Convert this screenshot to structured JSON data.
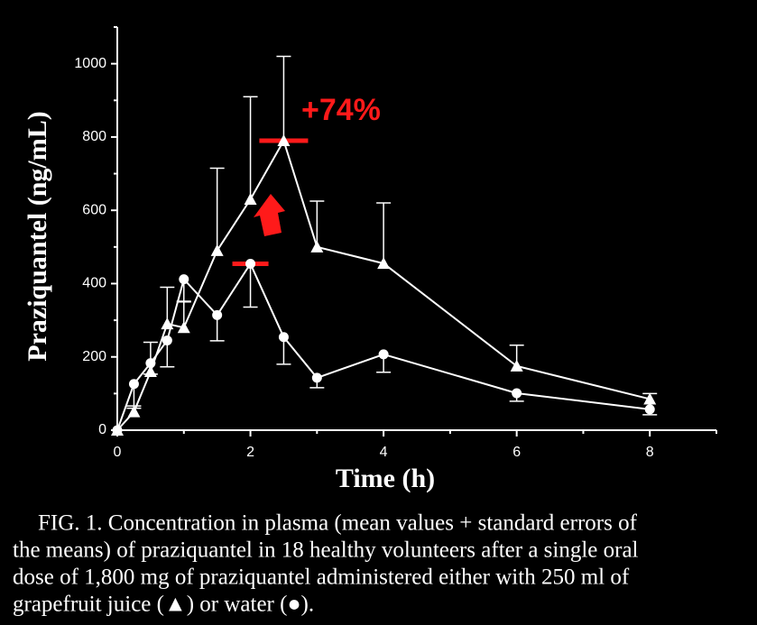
{
  "chart_data": {
    "type": "line",
    "x_label": "Time (h)",
    "y_label": "Praziquantel (ng/mL)",
    "annotation": "+74%",
    "highlight_color": "#ff1a1a",
    "x": [
      0,
      0.25,
      0.5,
      0.75,
      1,
      1.5,
      2,
      2.5,
      3,
      4,
      6,
      8
    ],
    "series": [
      {
        "name": "grapefruit juice",
        "marker": "triangle",
        "color": "#ffffff",
        "error_direction": "up",
        "values": [
          0,
          50,
          160,
          290,
          280,
          490,
          630,
          790,
          500,
          455,
          175,
          85
        ],
        "errors": [
          0,
          10,
          80,
          100,
          70,
          225,
          280,
          230,
          125,
          165,
          57,
          15
        ]
      },
      {
        "name": "water",
        "marker": "circle",
        "color": "#ffffff",
        "error_direction": "down",
        "values": [
          0,
          126,
          183,
          245,
          412,
          314,
          454,
          254,
          143,
          207,
          101,
          57
        ],
        "errors": [
          0,
          60,
          30,
          72,
          60,
          70,
          118,
          74,
          27,
          49,
          22,
          15
        ]
      }
    ],
    "xlim": [
      0,
      9
    ],
    "xticks": [
      0,
      2,
      4,
      6,
      8
    ],
    "xminor": [
      1,
      3,
      5,
      7,
      9
    ],
    "ylim": [
      0,
      1100
    ],
    "yticks": [
      0,
      200,
      400,
      600,
      800,
      1000
    ],
    "yminor": [
      100,
      300,
      500,
      700,
      900,
      1100
    ],
    "caption_lines": [
      "FIG. 1.  Concentration in plasma (mean values + standard errors of",
      "the means) of praziquantel in 18 healthy volunteers after a single oral",
      "dose of 1,800 mg of praziquantel administered either with 250 ml of",
      "grapefruit juice (▲) or water (●)."
    ]
  }
}
